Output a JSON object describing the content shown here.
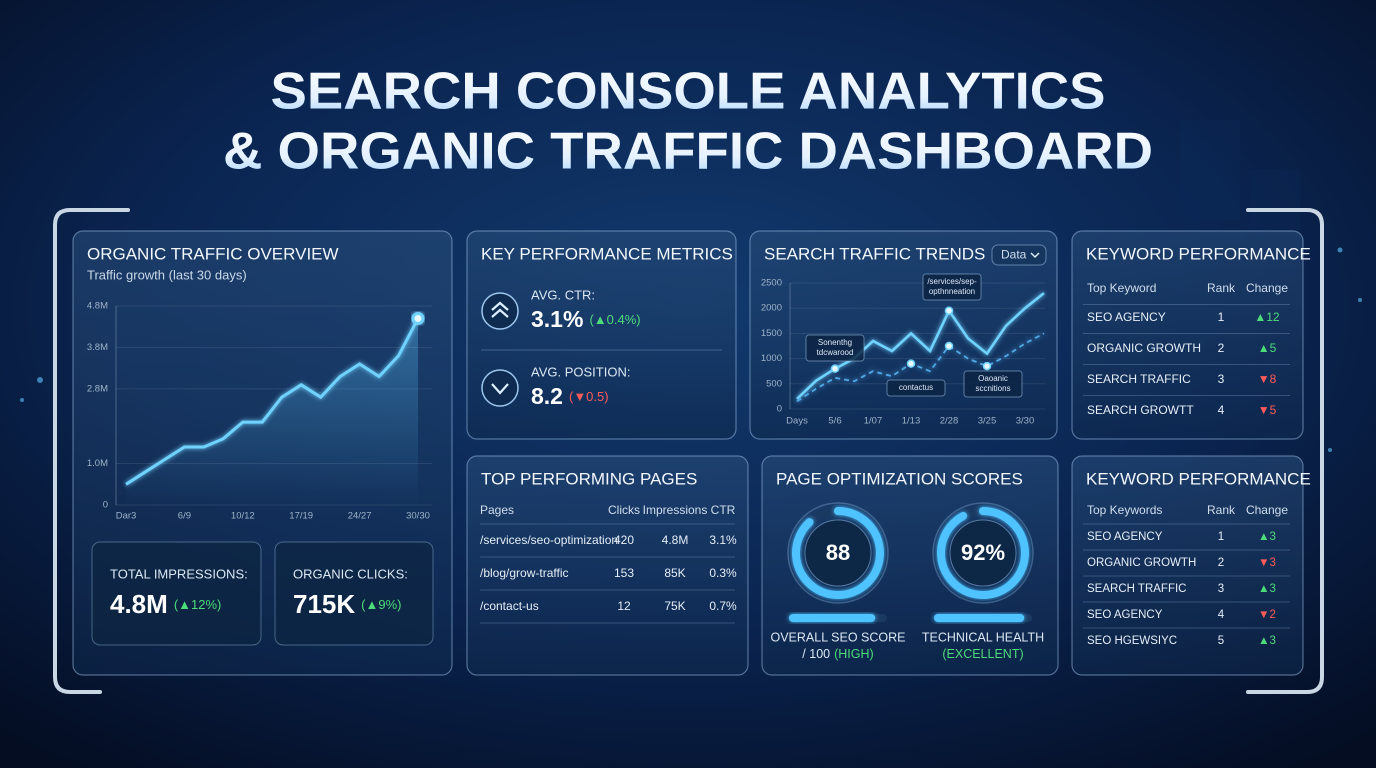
{
  "header": {
    "title_line1": "SEARCH CONSOLE ANALYTICS",
    "title_line2": "& ORGANIC TRAFFIC DASHBOARD"
  },
  "traffic_overview": {
    "title": "ORGANIC TRAFFIC OVERVIEW",
    "subtitle": "Traffic growth (last 30 days)",
    "chart": {
      "type": "line",
      "color": "#6fd3ff",
      "grid": true,
      "categories": [
        "Dar3",
        null,
        null,
        "6/9",
        null,
        null,
        "10/12",
        null,
        null,
        "17/19",
        null,
        null,
        "24/27",
        null,
        null,
        "30/30"
      ],
      "values": [
        0.5,
        0.8,
        1.1,
        1.4,
        1.4,
        1.6,
        2.0,
        2.0,
        2.6,
        2.9,
        2.6,
        3.1,
        3.4,
        3.1,
        3.6,
        4.5
      ],
      "ylim": [
        0,
        4.8
      ],
      "yticks": [
        0,
        {
          "value": 1,
          "label": "1.0M"
        },
        {
          "value": 2.8,
          "label": "2.8M"
        },
        {
          "value": 3.8,
          "label": "3.8M"
        },
        {
          "value": 4.8,
          "label": "4.8M"
        }
      ]
    },
    "kpis": [
      {
        "label": "TOTAL IMPRESSIONS:",
        "value": "4.8M",
        "change": "(▲12%)"
      },
      {
        "label": "ORGANIC CLICKS:",
        "value": "715K",
        "change": "(▲9%)"
      }
    ]
  },
  "key_metrics": {
    "title": "KEY PERFORMANCE METRICS",
    "items": [
      {
        "label": "AVG. CTR:",
        "value": "3.1%",
        "change": "(▲0.4%)"
      },
      {
        "label": "AVG. POSITION:",
        "value": "8.2",
        "change": "(▼0.5)"
      }
    ]
  },
  "traffic_trends": {
    "title": "SEARCH TRAFFIC TRENDS",
    "dropdown": "Data",
    "chart": {
      "type": "line",
      "grid": true,
      "categories": [
        "Days",
        null,
        "5/6",
        null,
        "1/07",
        null,
        "1/13",
        null,
        "2/28",
        null,
        "3/25",
        null,
        "3/30",
        null
      ],
      "series": [
        {
          "color": "#6fd3ff",
          "values": [
            200,
            560,
            800,
            1000,
            1350,
            1150,
            1500,
            1150,
            1950,
            1400,
            1100,
            1650,
            2000,
            2300
          ]
        },
        {
          "color": "#4fa8e6",
          "dashed": true,
          "values": [
            150,
            400,
            620,
            550,
            750,
            650,
            900,
            750,
            1250,
            1000,
            850,
            1050,
            1300,
            1500
          ]
        }
      ],
      "ylim": [
        0,
        2500
      ],
      "yticks": [
        0,
        500,
        1000,
        1500,
        2000,
        2500
      ],
      "annotations": [
        {
          "lines": [
            "Sonenthg",
            "tdcwarood"
          ]
        },
        {
          "lines": [
            "/services/sep-",
            "opthnneation"
          ]
        },
        {
          "lines": [
            "contactus"
          ]
        },
        {
          "lines": [
            "Oaoanic",
            "sccnitions"
          ]
        }
      ]
    }
  },
  "top_pages": {
    "title": "TOP PERFORMING PAGES",
    "columns": [
      "Pages",
      "Clicks",
      "Impressions",
      "CTR"
    ],
    "rows": [
      [
        "/services/seo-optimization",
        420,
        "4.8M",
        "3.1%"
      ],
      [
        "/blog/grow-traffic",
        153,
        "85K",
        "0.3%"
      ],
      [
        "/contact-us",
        12,
        "75K",
        "0.7%"
      ]
    ]
  },
  "page_scores": {
    "title": "PAGE OPTIMIZATION SCORES",
    "max": {
      "value": 100,
      "label": "/ 100"
    },
    "items": [
      {
        "value": 88,
        "name": "OVERALL SEO SCORE",
        "rating": "(HIGH)"
      },
      {
        "value": 92,
        "value_label": "92%",
        "name": "TECHNICAL HEALTH",
        "rating": "(EXCELLENT)"
      }
    ]
  },
  "keyword_performance": [
    {
      "title": "KEYWORD PERFORMANCE",
      "columns": [
        "Top Keyword",
        "Rank",
        "Change"
      ],
      "rows": [
        [
          "SEO AGENCY",
          1,
          "▲12"
        ],
        [
          "ORGANIC GROWTH",
          2,
          "▲5"
        ],
        [
          "SEARCH TRAFFIC",
          3,
          "▼8"
        ],
        [
          "SEARCH GROWTT",
          4,
          "▼5"
        ]
      ]
    },
    {
      "title": "KEYWORD PERFORMANCE",
      "columns": [
        "Top Keywords",
        "Rank",
        "Change"
      ],
      "rows": [
        [
          "SEO AGENCY",
          1,
          "▲3"
        ],
        [
          "ORGANIC GROWTH",
          2,
          "▼3"
        ],
        [
          "SEARCH TRAFFIC",
          3,
          "▲3"
        ],
        [
          "SEO AGENCY",
          4,
          "▼2"
        ],
        [
          "SEO HGEWSIYC",
          5,
          "▲3"
        ]
      ]
    }
  ]
}
